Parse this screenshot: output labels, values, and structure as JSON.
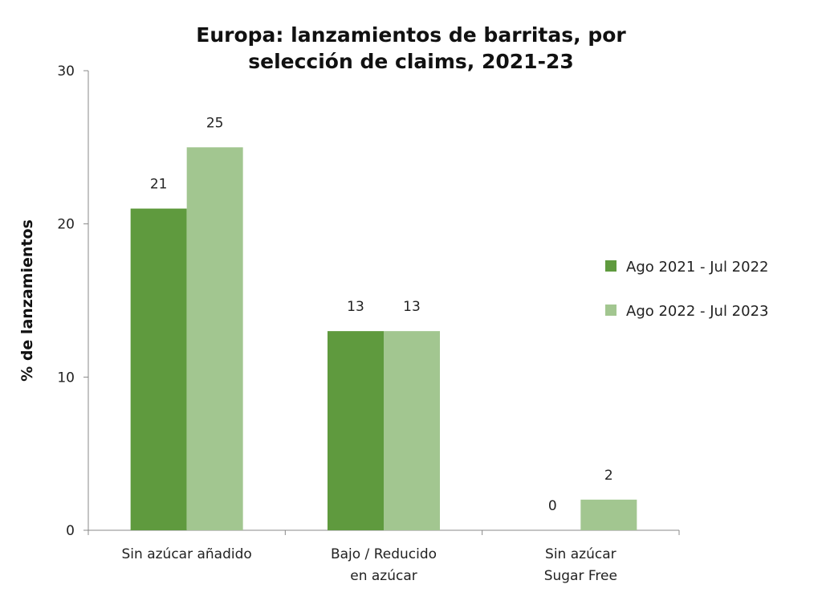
{
  "chart_data": {
    "type": "bar",
    "title": [
      "Europa: lanzamientos de barritas, por",
      "selección de claims, 2021-23"
    ],
    "xlabel": "",
    "ylabel": "% de lanzamientos",
    "ylim": [
      0,
      30
    ],
    "yticks": [
      0,
      10,
      20,
      30
    ],
    "grid": false,
    "legend_position": "right",
    "categories": [
      [
        "Sin azúcar añadido"
      ],
      [
        "Bajo / Reducido",
        "en azúcar"
      ],
      [
        "Sin azúcar",
        "Sugar Free"
      ]
    ],
    "series": [
      {
        "name": "Ago 2021 - Jul 2022",
        "color": "#5f9a3e",
        "values": [
          21,
          13,
          0
        ]
      },
      {
        "name": "Ago 2022 - Jul 2023",
        "color": "#a2c690",
        "values": [
          25,
          13,
          2
        ]
      }
    ]
  }
}
